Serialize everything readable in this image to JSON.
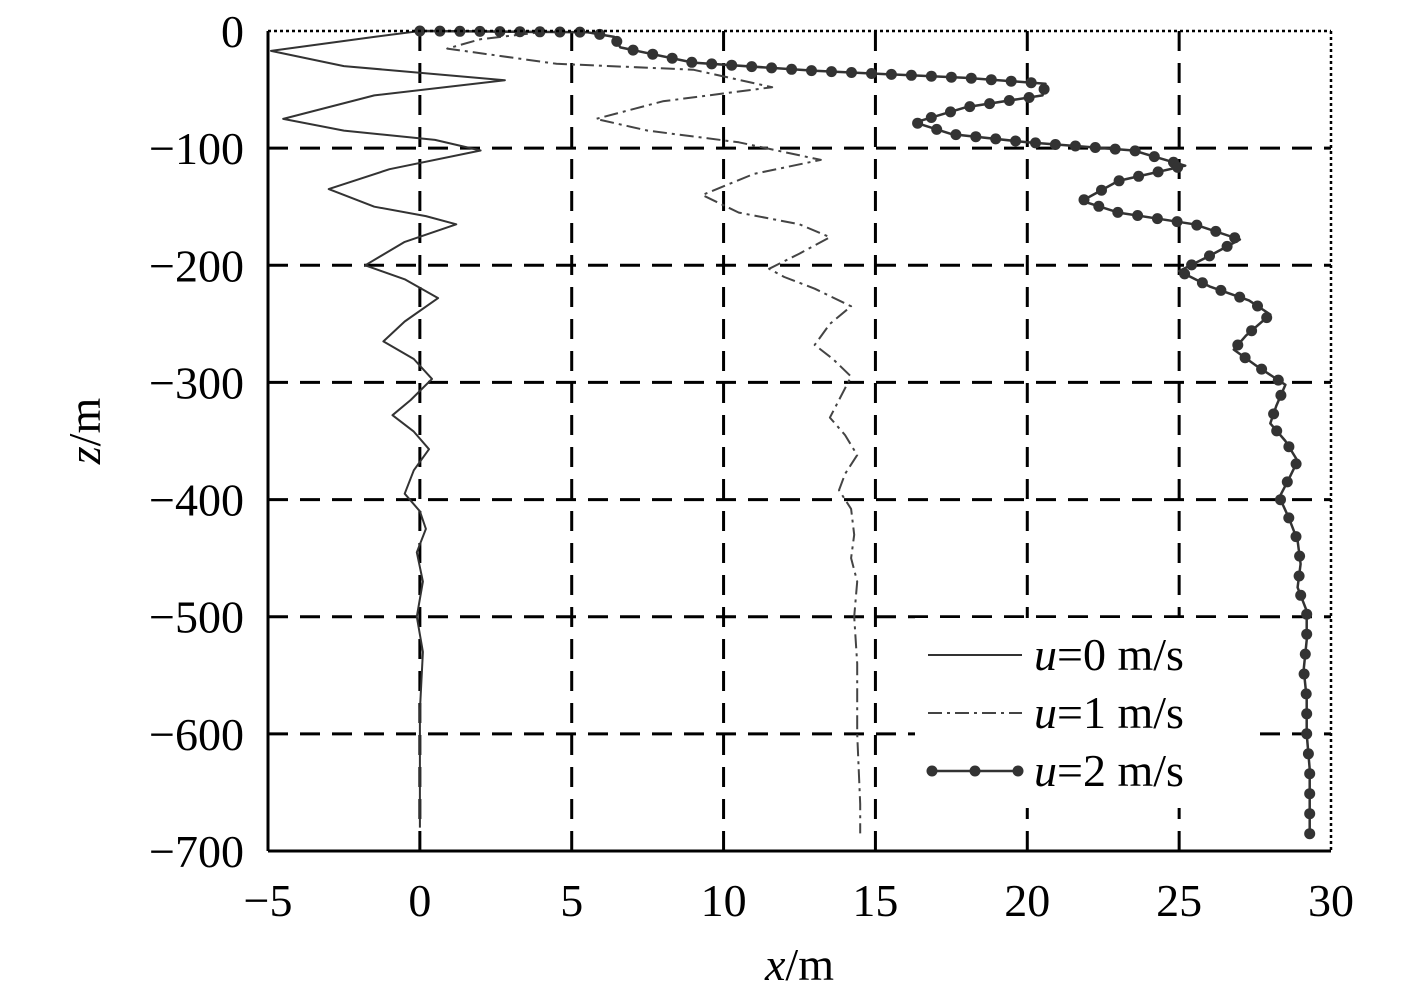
{
  "chart_data": {
    "type": "line",
    "title": "",
    "xlabel": {
      "var": "x",
      "unit": "/m"
    },
    "ylabel": {
      "var": "z",
      "unit": "/m"
    },
    "xlim": [
      -5,
      30
    ],
    "ylim": [
      -700,
      0
    ],
    "xticks": [
      -5,
      0,
      5,
      10,
      15,
      20,
      25,
      30
    ],
    "yticks": [
      0,
      -100,
      -200,
      -300,
      -400,
      -500,
      -600,
      -700
    ],
    "xtick_labels": [
      "−5",
      "0",
      "5",
      "10",
      "15",
      "20",
      "25",
      "30"
    ],
    "ytick_labels": [
      "0",
      "−100",
      "−200",
      "−300",
      "−400",
      "−500",
      "−600",
      "−700"
    ],
    "grid": true,
    "legend_position": "bottom-right",
    "series": [
      {
        "name": {
          "var": "u",
          "rest": "=0 m/s"
        },
        "style": "solid",
        "color": "#333333",
        "points": [
          [
            0,
            0
          ],
          [
            -1.5,
            -5
          ],
          [
            -4.9,
            -17
          ],
          [
            -2.5,
            -30
          ],
          [
            2.8,
            -42
          ],
          [
            -1.5,
            -55
          ],
          [
            -4.5,
            -75
          ],
          [
            -2.5,
            -85
          ],
          [
            0.5,
            -93
          ],
          [
            2.0,
            -102
          ],
          [
            -1.0,
            -118
          ],
          [
            -3.0,
            -135
          ],
          [
            -1.5,
            -150
          ],
          [
            0.2,
            -158
          ],
          [
            1.2,
            -165
          ],
          [
            -0.5,
            -180
          ],
          [
            -1.8,
            -200
          ],
          [
            -0.5,
            -212
          ],
          [
            0.6,
            -228
          ],
          [
            -0.5,
            -248
          ],
          [
            -1.2,
            -265
          ],
          [
            -0.2,
            -280
          ],
          [
            0.4,
            -297
          ],
          [
            -0.3,
            -315
          ],
          [
            -0.9,
            -328
          ],
          [
            -0.2,
            -342
          ],
          [
            0.3,
            -357
          ],
          [
            -0.2,
            -375
          ],
          [
            -0.5,
            -395
          ],
          [
            0.0,
            -410
          ],
          [
            0.2,
            -425
          ],
          [
            -0.1,
            -445
          ],
          [
            0.1,
            -470
          ],
          [
            -0.1,
            -500
          ],
          [
            0.1,
            -530
          ],
          [
            0.0,
            -580
          ],
          [
            0.0,
            -680
          ]
        ]
      },
      {
        "name": {
          "var": "u",
          "rest": "=1 m/s"
        },
        "style": "dashdot",
        "color": "#444444",
        "points": [
          [
            0,
            0
          ],
          [
            4.0,
            -1
          ],
          [
            2.0,
            -7
          ],
          [
            0.9,
            -15
          ],
          [
            4.5,
            -28
          ],
          [
            9.0,
            -33
          ],
          [
            11.6,
            -48
          ],
          [
            8.0,
            -60
          ],
          [
            5.8,
            -75
          ],
          [
            7.5,
            -85
          ],
          [
            10.5,
            -95
          ],
          [
            13.2,
            -110
          ],
          [
            11.0,
            -122
          ],
          [
            9.3,
            -140
          ],
          [
            10.5,
            -155
          ],
          [
            12.5,
            -165
          ],
          [
            13.5,
            -176
          ],
          [
            12.5,
            -190
          ],
          [
            11.5,
            -203
          ],
          [
            12.0,
            -210
          ],
          [
            13.0,
            -220
          ],
          [
            14.2,
            -235
          ],
          [
            13.5,
            -250
          ],
          [
            13.0,
            -268
          ],
          [
            13.6,
            -280
          ],
          [
            14.2,
            -295
          ],
          [
            13.8,
            -315
          ],
          [
            13.5,
            -330
          ],
          [
            14.0,
            -345
          ],
          [
            14.4,
            -362
          ],
          [
            14.0,
            -378
          ],
          [
            13.8,
            -392
          ],
          [
            14.2,
            -408
          ],
          [
            14.3,
            -430
          ],
          [
            14.2,
            -450
          ],
          [
            14.4,
            -470
          ],
          [
            14.3,
            -500
          ],
          [
            14.4,
            -540
          ],
          [
            14.4,
            -600
          ],
          [
            14.5,
            -660
          ],
          [
            14.5,
            -685
          ]
        ]
      },
      {
        "name": {
          "var": "u",
          "rest": "=2 m/s"
        },
        "style": "solid-dots",
        "color": "#333333",
        "points": [
          [
            0,
            0
          ],
          [
            5.5,
            -1
          ],
          [
            6.4,
            -5
          ],
          [
            6.6,
            -14
          ],
          [
            9.0,
            -27
          ],
          [
            13.0,
            -34
          ],
          [
            18.0,
            -40
          ],
          [
            20.6,
            -45
          ],
          [
            20.5,
            -55
          ],
          [
            18.0,
            -65
          ],
          [
            16.3,
            -78
          ],
          [
            17.5,
            -88
          ],
          [
            20.0,
            -95
          ],
          [
            23.5,
            -102
          ],
          [
            25.2,
            -115
          ],
          [
            23.0,
            -128
          ],
          [
            21.8,
            -145
          ],
          [
            23.0,
            -155
          ],
          [
            25.5,
            -165
          ],
          [
            27.0,
            -178
          ],
          [
            26.0,
            -192
          ],
          [
            25.0,
            -205
          ],
          [
            26.0,
            -218
          ],
          [
            27.3,
            -230
          ],
          [
            28.0,
            -242
          ],
          [
            27.2,
            -260
          ],
          [
            26.8,
            -272
          ],
          [
            27.5,
            -285
          ],
          [
            28.5,
            -302
          ],
          [
            28.2,
            -320
          ],
          [
            28.0,
            -335
          ],
          [
            28.5,
            -350
          ],
          [
            28.9,
            -367
          ],
          [
            28.6,
            -383
          ],
          [
            28.3,
            -398
          ],
          [
            28.6,
            -415
          ],
          [
            28.9,
            -435
          ],
          [
            29.0,
            -455
          ],
          [
            28.9,
            -475
          ],
          [
            29.2,
            -495
          ],
          [
            29.2,
            -520
          ],
          [
            29.1,
            -545
          ],
          [
            29.2,
            -570
          ],
          [
            29.2,
            -600
          ],
          [
            29.3,
            -630
          ],
          [
            29.3,
            -660
          ],
          [
            29.3,
            -687
          ]
        ]
      }
    ]
  }
}
